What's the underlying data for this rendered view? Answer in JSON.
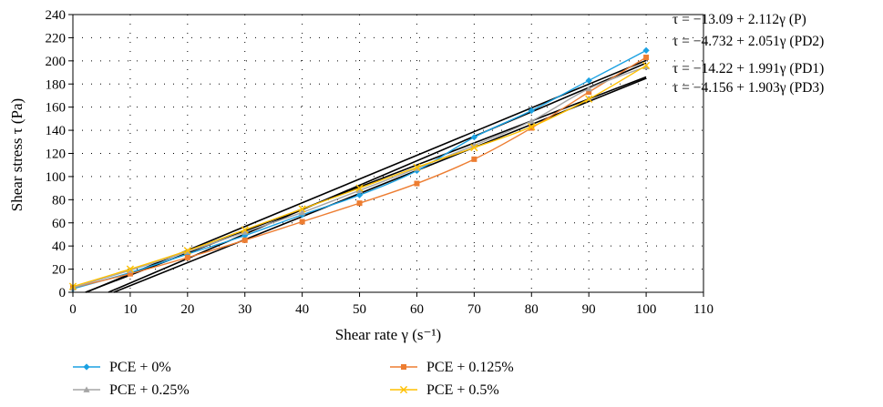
{
  "chart_data": {
    "type": "line",
    "xlabel": "Shear rate γ (s⁻¹)",
    "ylabel": "Shear stress τ (Pa)",
    "xlim": [
      0,
      110
    ],
    "ylim": [
      0,
      240
    ],
    "x_ticks": [
      0,
      10,
      20,
      30,
      40,
      50,
      60,
      70,
      80,
      90,
      100,
      110
    ],
    "y_ticks": [
      0,
      20,
      40,
      60,
      80,
      100,
      120,
      140,
      160,
      180,
      200,
      220,
      240
    ],
    "grid": "dotted",
    "legend_position": "bottom",
    "x": [
      0,
      10,
      20,
      30,
      40,
      50,
      60,
      70,
      80,
      90,
      100
    ],
    "series": [
      {
        "name": "PCE + 0%",
        "color": "#1ba1e2",
        "marker": "diamond",
        "values": [
          3,
          17,
          33,
          49,
          67,
          84,
          105,
          134,
          157,
          183,
          209
        ]
      },
      {
        "name": "PCE + 0.125%",
        "color": "#ed7d31",
        "marker": "square",
        "values": [
          4,
          16,
          30,
          45,
          61,
          77,
          94,
          115,
          142,
          173,
          203
        ]
      },
      {
        "name": "PCE + 0.25%",
        "color": "#a5a5a5",
        "marker": "triangle",
        "values": [
          4,
          19,
          35,
          52,
          69,
          88,
          107,
          127,
          148,
          176,
          195
        ]
      },
      {
        "name": "PCE + 0.5%",
        "color": "#ffc000",
        "marker": "x",
        "values": [
          5,
          20,
          36,
          54,
          72,
          90,
          108,
          125,
          143,
          167,
          196
        ]
      }
    ],
    "fit_lines": [
      {
        "label": "P",
        "intercept": -13.09,
        "slope": 2.112,
        "color": "#000000"
      },
      {
        "label": "PD2",
        "intercept": -4.732,
        "slope": 2.051,
        "color": "#000000"
      },
      {
        "label": "PD1",
        "intercept": -14.22,
        "slope": 1.991,
        "color": "#000000"
      },
      {
        "label": "PD3",
        "intercept": -4.156,
        "slope": 1.903,
        "color": "#000000"
      }
    ],
    "annotations": [
      "τ = −13.09 + 2.112γ (P)",
      "τ = −4.732 + 2.051γ (PD2)",
      "τ = −14.22 + 1.991γ (PD1)",
      "τ = −4.156 + 1.903γ (PD3)"
    ]
  }
}
